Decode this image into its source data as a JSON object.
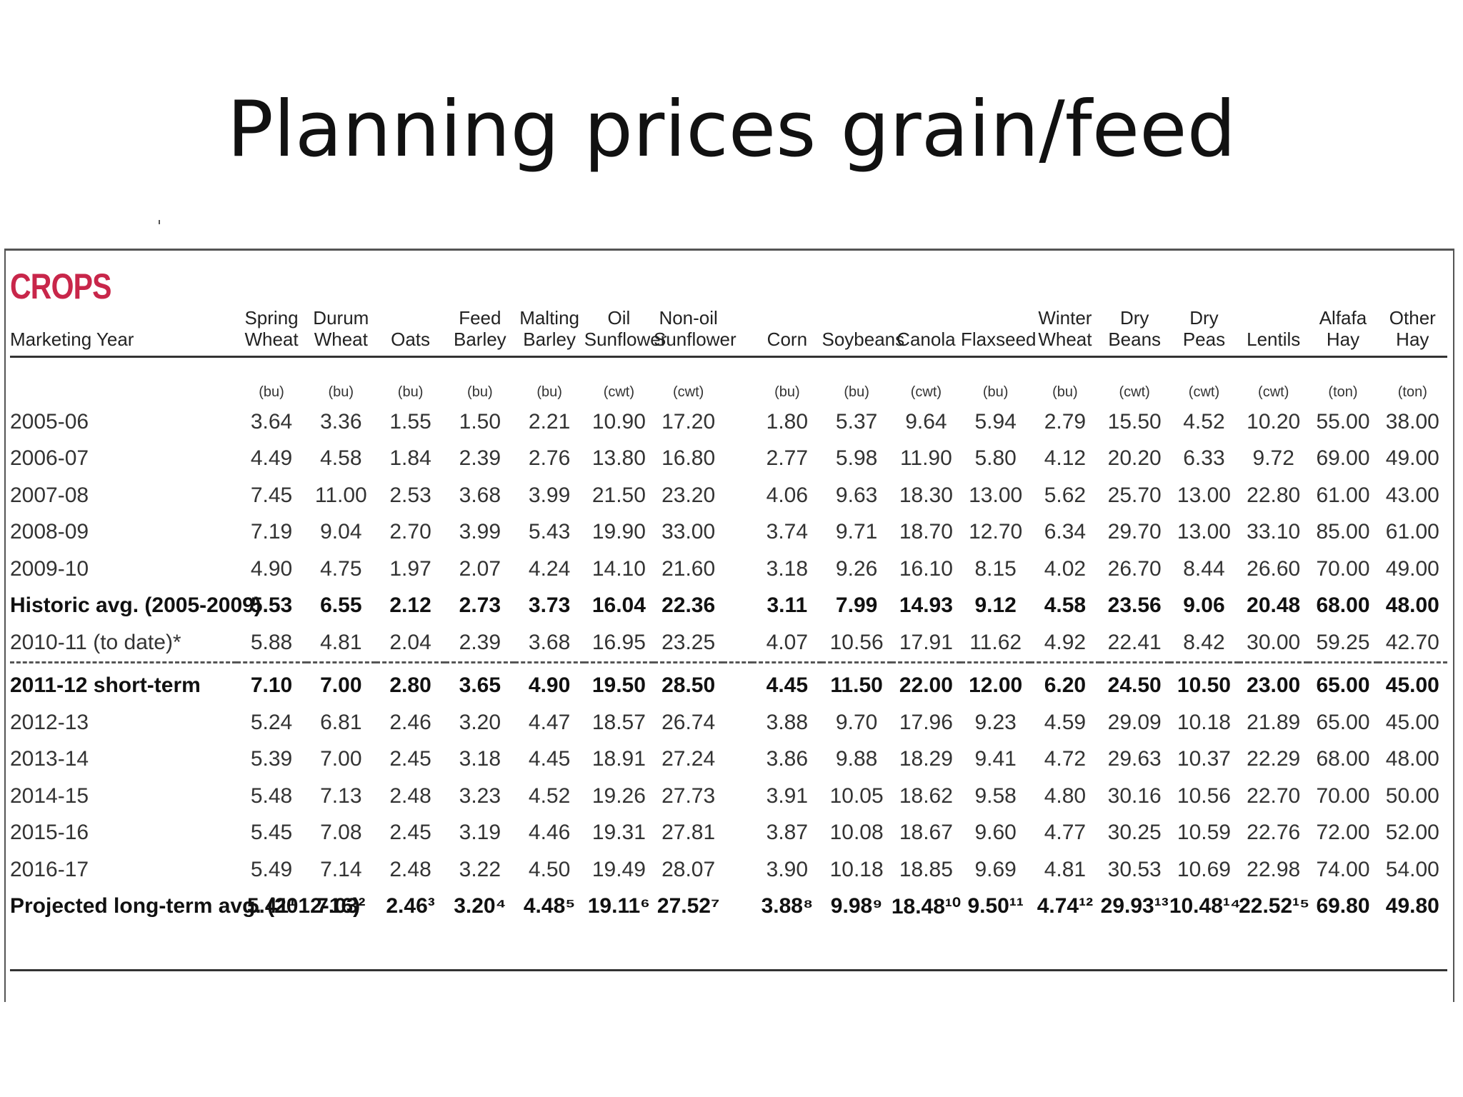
{
  "slide": {
    "title": "Planning prices grain/feed"
  },
  "table": {
    "heading": "CROPS",
    "label_header": "Marketing Year",
    "columns": [
      {
        "name": "Spring Wheat",
        "unit": "(bu)"
      },
      {
        "name": "Durum Wheat",
        "unit": "(bu)"
      },
      {
        "name": "Oats",
        "unit": "(bu)"
      },
      {
        "name": "Feed Barley",
        "unit": "(bu)"
      },
      {
        "name": "Malting Barley",
        "unit": "(bu)"
      },
      {
        "name": "Oil Sunflower",
        "unit": "(cwt)"
      },
      {
        "name": "Non-oil Sunflower",
        "unit": "(cwt)"
      },
      {
        "name": "",
        "unit": ""
      },
      {
        "name": "Corn",
        "unit": "(bu)"
      },
      {
        "name": "Soybeans",
        "unit": "(bu)"
      },
      {
        "name": "Canola",
        "unit": "(cwt)"
      },
      {
        "name": "Flaxseed",
        "unit": "(bu)"
      },
      {
        "name": "Winter Wheat",
        "unit": "(bu)"
      },
      {
        "name": "Dry Beans",
        "unit": "(cwt)"
      },
      {
        "name": "Dry Peas",
        "unit": "(cwt)"
      },
      {
        "name": "Lentils",
        "unit": "(cwt)"
      },
      {
        "name": "Alfafa Hay",
        "unit": "(ton)"
      },
      {
        "name": "Other Hay",
        "unit": "(ton)"
      }
    ],
    "rows_top": [
      {
        "label": "2005-06",
        "bold": false,
        "values": [
          "3.64",
          "3.36",
          "1.55",
          "1.50",
          "2.21",
          "10.90",
          "17.20",
          "",
          "1.80",
          "5.37",
          "9.64",
          "5.94",
          "2.79",
          "15.50",
          "4.52",
          "10.20",
          "55.00",
          "38.00"
        ]
      },
      {
        "label": "2006-07",
        "bold": false,
        "values": [
          "4.49",
          "4.58",
          "1.84",
          "2.39",
          "2.76",
          "13.80",
          "16.80",
          "",
          "2.77",
          "5.98",
          "11.90",
          "5.80",
          "4.12",
          "20.20",
          "6.33",
          "9.72",
          "69.00",
          "49.00"
        ]
      },
      {
        "label": "2007-08",
        "bold": false,
        "values": [
          "7.45",
          "11.00",
          "2.53",
          "3.68",
          "3.99",
          "21.50",
          "23.20",
          "",
          "4.06",
          "9.63",
          "18.30",
          "13.00",
          "5.62",
          "25.70",
          "13.00",
          "22.80",
          "61.00",
          "43.00"
        ]
      },
      {
        "label": "2008-09",
        "bold": false,
        "values": [
          "7.19",
          "9.04",
          "2.70",
          "3.99",
          "5.43",
          "19.90",
          "33.00",
          "",
          "3.74",
          "9.71",
          "18.70",
          "12.70",
          "6.34",
          "29.70",
          "13.00",
          "33.10",
          "85.00",
          "61.00"
        ]
      },
      {
        "label": "2009-10",
        "bold": false,
        "values": [
          "4.90",
          "4.75",
          "1.97",
          "2.07",
          "4.24",
          "14.10",
          "21.60",
          "",
          "3.18",
          "9.26",
          "16.10",
          "8.15",
          "4.02",
          "26.70",
          "8.44",
          "26.60",
          "70.00",
          "49.00"
        ]
      },
      {
        "label": "Historic avg. (2005-2009)",
        "bold": true,
        "values": [
          "5.53",
          "6.55",
          "2.12",
          "2.73",
          "3.73",
          "16.04",
          "22.36",
          "",
          "3.11",
          "7.99",
          "14.93",
          "9.12",
          "4.58",
          "23.56",
          "9.06",
          "20.48",
          "68.00",
          "48.00"
        ]
      },
      {
        "label": "2010-11 (to date)*",
        "bold": false,
        "values": [
          "5.88",
          "4.81",
          "2.04",
          "2.39",
          "3.68",
          "16.95",
          "23.25",
          "",
          "4.07",
          "10.56",
          "17.91",
          "11.62",
          "4.92",
          "22.41",
          "8.42",
          "30.00",
          "59.25",
          "42.70"
        ]
      }
    ],
    "rows_bottom": [
      {
        "label": "2011-12 short-term",
        "bold": true,
        "values": [
          "7.10",
          "7.00",
          "2.80",
          "3.65",
          "4.90",
          "19.50",
          "28.50",
          "",
          "4.45",
          "11.50",
          "22.00",
          "12.00",
          "6.20",
          "24.50",
          "10.50",
          "23.00",
          "65.00",
          "45.00"
        ]
      },
      {
        "label": "2012-13",
        "bold": false,
        "values": [
          "5.24",
          "6.81",
          "2.46",
          "3.20",
          "4.47",
          "18.57",
          "26.74",
          "",
          "3.88",
          "9.70",
          "17.96",
          "9.23",
          "4.59",
          "29.09",
          "10.18",
          "21.89",
          "65.00",
          "45.00"
        ]
      },
      {
        "label": "2013-14",
        "bold": false,
        "values": [
          "5.39",
          "7.00",
          "2.45",
          "3.18",
          "4.45",
          "18.91",
          "27.24",
          "",
          "3.86",
          "9.88",
          "18.29",
          "9.41",
          "4.72",
          "29.63",
          "10.37",
          "22.29",
          "68.00",
          "48.00"
        ]
      },
      {
        "label": "2014-15",
        "bold": false,
        "values": [
          "5.48",
          "7.13",
          "2.48",
          "3.23",
          "4.52",
          "19.26",
          "27.73",
          "",
          "3.91",
          "10.05",
          "18.62",
          "9.58",
          "4.80",
          "30.16",
          "10.56",
          "22.70",
          "70.00",
          "50.00"
        ]
      },
      {
        "label": "2015-16",
        "bold": false,
        "values": [
          "5.45",
          "7.08",
          "2.45",
          "3.19",
          "4.46",
          "19.31",
          "27.81",
          "",
          "3.87",
          "10.08",
          "18.67",
          "9.60",
          "4.77",
          "30.25",
          "10.59",
          "22.76",
          "72.00",
          "52.00"
        ]
      },
      {
        "label": "2016-17",
        "bold": false,
        "values": [
          "5.49",
          "7.14",
          "2.48",
          "3.22",
          "4.50",
          "19.49",
          "28.07",
          "",
          "3.90",
          "10.18",
          "18.85",
          "9.69",
          "4.81",
          "30.53",
          "10.69",
          "22.98",
          "74.00",
          "54.00"
        ]
      },
      {
        "label": "Projected long-term avg. (2012-16)",
        "bold": true,
        "values": [
          "5.41¹",
          "7.03²",
          "2.46³",
          "3.20⁴",
          "4.48⁵",
          "19.11⁶",
          "27.52⁷",
          "",
          "3.88⁸",
          "9.98⁹",
          "18.48¹⁰",
          "9.50¹¹",
          "4.74¹²",
          "29.93¹³",
          "10.48¹⁴",
          "22.52¹⁵",
          "69.80",
          "49.80"
        ]
      }
    ]
  }
}
